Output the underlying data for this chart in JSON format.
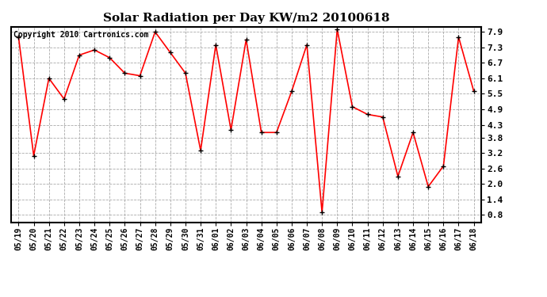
{
  "title": "Solar Radiation per Day KW/m2 20100618",
  "copyright": "Copyright 2010 Cartronics.com",
  "x_labels": [
    "05/19",
    "05/20",
    "05/21",
    "05/22",
    "05/23",
    "05/24",
    "05/25",
    "05/26",
    "05/27",
    "05/28",
    "05/29",
    "05/30",
    "05/31",
    "06/01",
    "06/02",
    "06/03",
    "06/04",
    "06/05",
    "06/06",
    "06/07",
    "06/08",
    "06/09",
    "06/10",
    "06/11",
    "06/12",
    "06/13",
    "06/14",
    "06/15",
    "06/16",
    "06/17",
    "06/18"
  ],
  "y_values": [
    7.7,
    3.1,
    6.1,
    5.3,
    7.0,
    7.2,
    6.9,
    6.3,
    6.2,
    7.9,
    7.1,
    6.3,
    3.3,
    7.4,
    4.1,
    7.6,
    4.0,
    4.0,
    5.6,
    7.4,
    0.9,
    8.0,
    5.0,
    4.7,
    4.6,
    2.3,
    4.0,
    1.9,
    2.7,
    7.7,
    5.6
  ],
  "y_ticks": [
    0.8,
    1.4,
    2.0,
    2.6,
    3.2,
    3.8,
    4.3,
    4.9,
    5.5,
    6.1,
    6.7,
    7.3,
    7.9
  ],
  "y_min": 0.5,
  "y_max": 8.1,
  "line_color": "#ff0000",
  "marker": "+",
  "marker_color": "#000000",
  "bg_color": "#ffffff",
  "plot_bg_color": "#ffffff",
  "grid_color": "#aaaaaa",
  "grid_style": "--",
  "title_fontsize": 11,
  "copyright_fontsize": 7,
  "tick_fontsize": 7,
  "figsize": [
    6.9,
    3.75
  ],
  "dpi": 100
}
